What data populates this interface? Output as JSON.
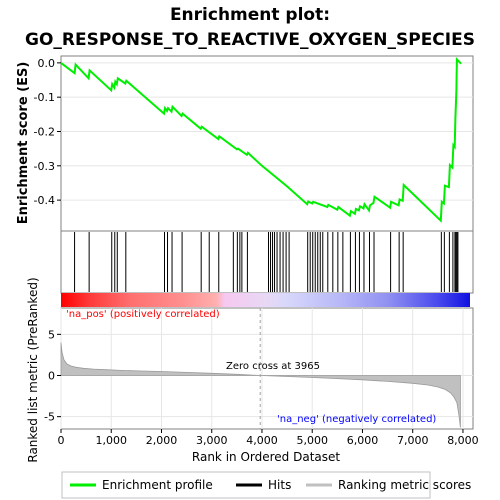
{
  "title_line1": "Enrichment plot:",
  "title_line2": "GO_RESPONSE_TO_REACTIVE_OXYGEN_SPECIES",
  "colors": {
    "es_line": "#00ee00",
    "hits": "#000000",
    "metric_fill": "#c0c0c0",
    "pos_text": "#ff0000",
    "neg_text": "#0000ff",
    "grid": "#e6e6e6",
    "panel_border": "#808080"
  },
  "chart_data": [
    {
      "panel": "enrichment",
      "type": "line",
      "ylabel": "Enrichment score (ES)",
      "xlim": [
        0,
        8200
      ],
      "ylim": [
        -0.49,
        0.02
      ],
      "y_ticks": [
        0.0,
        -0.1,
        -0.2,
        -0.3,
        -0.4
      ],
      "y_tick_labels": [
        "0.0",
        "-0.1",
        "-0.2",
        "-0.3",
        "-0.4"
      ],
      "grid": true,
      "series": [
        {
          "x": [
            0,
            270,
            290,
            550,
            570,
            1000,
            1020,
            1060,
            1080,
            1110,
            1130,
            1280,
            1300,
            2050,
            2070,
            2110,
            2130,
            2200,
            2220,
            2400,
            2420,
            2780,
            2800,
            3130,
            3150,
            3500,
            3520,
            3700,
            3720,
            4000,
            4500,
            4900,
            4920,
            5000,
            5020,
            5300,
            5320,
            5500,
            5520,
            5750,
            5770,
            5850,
            5870,
            5930,
            5950,
            6020,
            6040,
            6130,
            6150,
            6220,
            6240,
            6550,
            6570,
            6720,
            6740,
            6800,
            6820,
            7560,
            7580,
            7620,
            7640,
            7720,
            7740,
            7790,
            7810,
            7835,
            7850,
            7870,
            7880,
            7950,
            7960
          ],
          "y": [
            -0.0,
            -0.03,
            -0.005,
            -0.045,
            -0.022,
            -0.08,
            -0.062,
            -0.072,
            -0.055,
            -0.062,
            -0.045,
            -0.06,
            -0.052,
            -0.148,
            -0.132,
            -0.14,
            -0.132,
            -0.142,
            -0.128,
            -0.155,
            -0.148,
            -0.192,
            -0.186,
            -0.222,
            -0.214,
            -0.252,
            -0.25,
            -0.268,
            -0.262,
            -0.3,
            -0.36,
            -0.412,
            -0.404,
            -0.41,
            -0.405,
            -0.42,
            -0.414,
            -0.428,
            -0.42,
            -0.445,
            -0.432,
            -0.44,
            -0.426,
            -0.43,
            -0.418,
            -0.424,
            -0.412,
            -0.43,
            -0.415,
            -0.408,
            -0.39,
            -0.422,
            -0.405,
            -0.415,
            -0.398,
            -0.402,
            -0.356,
            -0.46,
            -0.405,
            -0.41,
            -0.358,
            -0.362,
            -0.298,
            -0.305,
            -0.24,
            -0.245,
            -0.16,
            -0.08,
            0.01,
            0.0,
            0.002
          ]
        }
      ]
    },
    {
      "panel": "hits",
      "type": "scatter",
      "hit_positions": [
        270,
        560,
        1010,
        1070,
        1120,
        1290,
        2060,
        2120,
        2210,
        2410,
        2790,
        2950,
        3140,
        3430,
        3510,
        3560,
        3600,
        3710,
        4130,
        4170,
        4210,
        4250,
        4300,
        4360,
        4420,
        4480,
        4540,
        4910,
        4960,
        5010,
        5060,
        5110,
        5160,
        5210,
        5310,
        5410,
        5510,
        5610,
        5760,
        5860,
        5940,
        6030,
        6140,
        6230,
        6560,
        6730,
        6810,
        7570,
        7630,
        7730,
        7800,
        7840,
        7860,
        7880,
        7900
      ]
    },
    {
      "panel": "metric_bar",
      "type": "heatmap",
      "x_range": [
        0,
        7950
      ]
    },
    {
      "panel": "ranked_list",
      "type": "area",
      "ylabel": "Ranked list metric (PreRanked)",
      "xlabel": "Rank in Ordered Dataset",
      "xlim": [
        0,
        8200
      ],
      "ylim": [
        -6.5,
        8.2
      ],
      "x_ticks": [
        0,
        1000,
        2000,
        3000,
        4000,
        5000,
        6000,
        7000,
        8000
      ],
      "x_tick_labels": [
        "0",
        "1,000",
        "2,000",
        "3,000",
        "4,000",
        "5,000",
        "6,000",
        "7,000",
        "8,000"
      ],
      "y_ticks": [
        5,
        0,
        -5
      ],
      "y_tick_labels": [
        "5",
        "0",
        "-5"
      ],
      "x": [
        0,
        20,
        60,
        120,
        200,
        300,
        450,
        650,
        900,
        1200,
        1600,
        2000,
        2500,
        3000,
        3500,
        3965,
        4500,
        5000,
        5500,
        6000,
        6500,
        7000,
        7300,
        7500,
        7650,
        7750,
        7820,
        7880,
        7920,
        7950
      ],
      "y": [
        4.0,
        2.8,
        1.9,
        1.4,
        1.15,
        1.0,
        0.88,
        0.78,
        0.7,
        0.62,
        0.55,
        0.48,
        0.38,
        0.27,
        0.14,
        0.0,
        -0.12,
        -0.24,
        -0.38,
        -0.52,
        -0.72,
        -0.95,
        -1.15,
        -1.4,
        -1.7,
        -2.1,
        -2.6,
        -3.3,
        -4.8,
        -6.3
      ],
      "zero_cross_label": "Zero cross at 3965",
      "zero_cross": 3965,
      "pos_label": "'na_pos' (positively correlated)",
      "neg_label": "'na_neg' (negatively correlated)"
    }
  ],
  "legend": {
    "items": [
      {
        "label": "Enrichment profile",
        "color": "#00ee00"
      },
      {
        "label": "Hits",
        "color": "#000000"
      },
      {
        "label": "Ranking metric scores",
        "color": "#c0c0c0"
      }
    ]
  }
}
